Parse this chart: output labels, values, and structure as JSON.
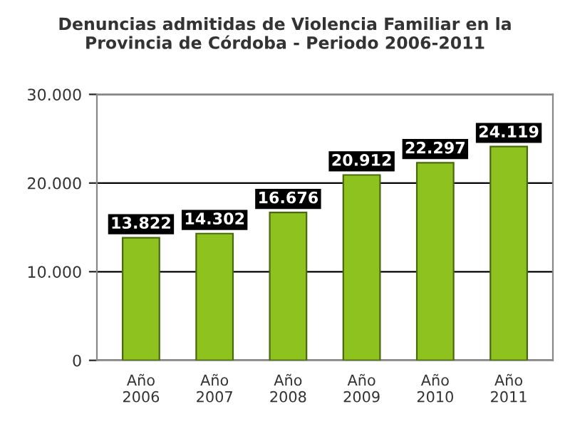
{
  "chart_data": {
    "type": "bar",
    "title": "Denuncias admitidas de Violencia Familiar en la\nProvincia de Córdoba - Periodo 2006-2011",
    "categories": [
      "Año\n2006",
      "Año\n2007",
      "Año\n2008",
      "Año\n2009",
      "Año\n2010",
      "Año\n2011"
    ],
    "values": [
      13822,
      14302,
      16676,
      20912,
      22297,
      24119
    ],
    "value_labels": [
      "13.822",
      "14.302",
      "16.676",
      "20.912",
      "22.297",
      "24.119"
    ],
    "color": "#8dc21f",
    "ylim": [
      0,
      30000
    ],
    "yticks": [
      {
        "value": 0,
        "label": "0"
      },
      {
        "value": 10000,
        "label": "10.000"
      },
      {
        "value": 20000,
        "label": "20.000"
      },
      {
        "value": 30000,
        "label": "30.000"
      }
    ],
    "grid": "y"
  }
}
